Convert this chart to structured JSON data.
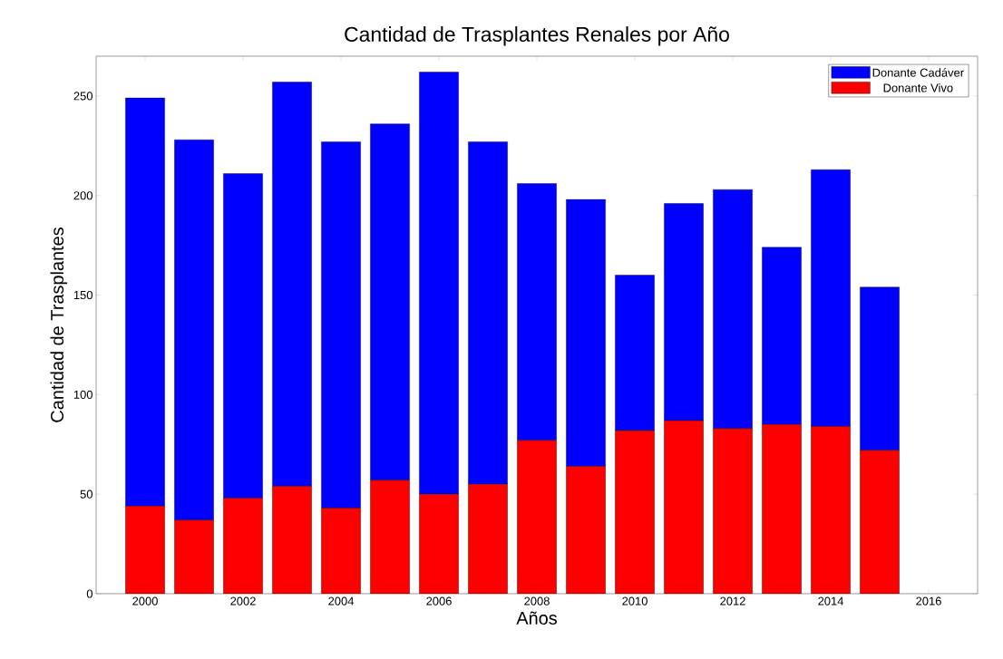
{
  "chart_data": {
    "type": "bar",
    "stacked": true,
    "title": "Cantidad de Trasplantes Renales por Año",
    "xlabel": "Años",
    "ylabel": "Cantidad de Trasplantes",
    "x": [
      2000,
      2001,
      2002,
      2003,
      2004,
      2005,
      2006,
      2007,
      2008,
      2009,
      2010,
      2011,
      2012,
      2013,
      2014,
      2015
    ],
    "series": [
      {
        "name": "Donante Vivo",
        "color": "#ff0000",
        "values": [
          44,
          37,
          48,
          54,
          43,
          57,
          50,
          55,
          77,
          64,
          82,
          87,
          83,
          85,
          84,
          72
        ]
      },
      {
        "name": "Donante Cadáver",
        "color": "#0000ff",
        "values": [
          205,
          191,
          163,
          203,
          184,
          179,
          212,
          172,
          129,
          134,
          78,
          109,
          120,
          89,
          129,
          82
        ]
      }
    ],
    "xlim": [
      1999,
      2017
    ],
    "xticks": [
      2000,
      2002,
      2004,
      2006,
      2008,
      2010,
      2012,
      2014,
      2016
    ],
    "ylim": [
      0,
      270
    ],
    "yticks": [
      0,
      50,
      100,
      150,
      200,
      250
    ],
    "grid": false,
    "legend": "top right"
  }
}
